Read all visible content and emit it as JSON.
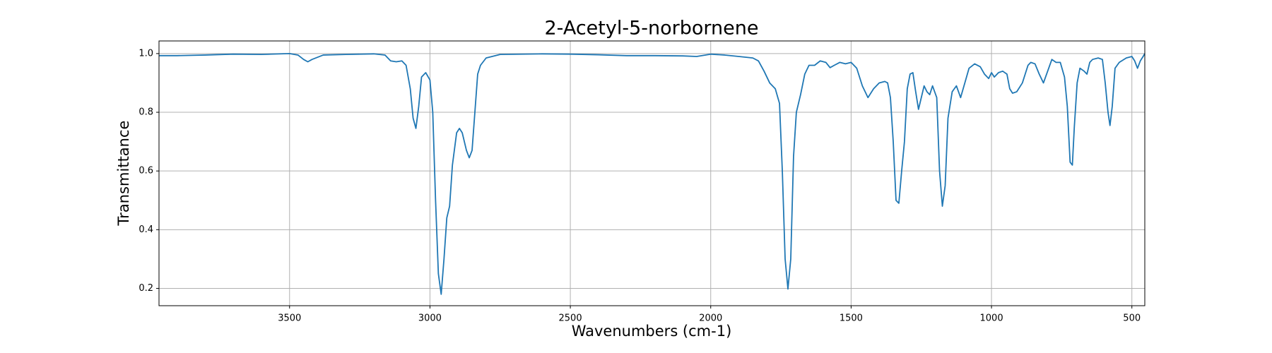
{
  "chart_data": {
    "type": "line",
    "title": "2-Acetyl-5-norbornene",
    "xlabel": "Wavenumbers (cm-1)",
    "ylabel": "Transmittance",
    "xlim": [
      3965,
      454
    ],
    "ylim": [
      0.141,
      1.043
    ],
    "xticks": [
      3500,
      3000,
      2500,
      2000,
      1500,
      1000,
      500
    ],
    "yticks": [
      0.2,
      0.4,
      0.6,
      0.8,
      {
        "value": 1.0,
        "label": "1.0"
      }
    ],
    "grid": true,
    "series": [
      {
        "color": "#1f77b4",
        "x": [
          3965,
          3900,
          3800,
          3700,
          3600,
          3500,
          3470,
          3450,
          3435,
          3420,
          3380,
          3300,
          3200,
          3160,
          3140,
          3120,
          3100,
          3085,
          3070,
          3060,
          3050,
          3040,
          3030,
          3015,
          3000,
          2990,
          2980,
          2970,
          2960,
          2950,
          2940,
          2930,
          2920,
          2905,
          2895,
          2885,
          2870,
          2860,
          2850,
          2840,
          2830,
          2820,
          2800,
          2750,
          2600,
          2500,
          2400,
          2300,
          2200,
          2100,
          2050,
          2000,
          1950,
          1900,
          1850,
          1830,
          1810,
          1790,
          1770,
          1755,
          1745,
          1735,
          1725,
          1715,
          1705,
          1695,
          1680,
          1665,
          1650,
          1630,
          1610,
          1590,
          1575,
          1560,
          1540,
          1520,
          1500,
          1480,
          1460,
          1440,
          1420,
          1400,
          1380,
          1370,
          1360,
          1350,
          1340,
          1330,
          1320,
          1310,
          1300,
          1290,
          1280,
          1270,
          1260,
          1250,
          1240,
          1230,
          1220,
          1210,
          1195,
          1185,
          1175,
          1165,
          1155,
          1140,
          1125,
          1110,
          1095,
          1080,
          1060,
          1040,
          1025,
          1010,
          1000,
          990,
          975,
          960,
          945,
          935,
          925,
          910,
          890,
          870,
          860,
          845,
          830,
          815,
          800,
          785,
          770,
          755,
          740,
          730,
          720,
          712,
          705,
          695,
          685,
          670,
          660,
          650,
          640,
          620,
          605,
          595,
          585,
          578,
          570,
          560,
          545,
          520,
          500,
          490,
          480,
          470,
          460,
          454
        ],
        "values": [
          0.993,
          0.993,
          0.995,
          0.998,
          0.997,
          1.0,
          0.995,
          0.98,
          0.972,
          0.98,
          0.995,
          0.997,
          0.999,
          0.995,
          0.975,
          0.972,
          0.975,
          0.96,
          0.88,
          0.78,
          0.745,
          0.82,
          0.92,
          0.935,
          0.91,
          0.8,
          0.5,
          0.25,
          0.18,
          0.3,
          0.44,
          0.48,
          0.62,
          0.73,
          0.745,
          0.73,
          0.67,
          0.645,
          0.67,
          0.8,
          0.93,
          0.96,
          0.985,
          0.997,
          0.999,
          0.998,
          0.996,
          0.993,
          0.993,
          0.992,
          0.99,
          0.998,
          0.995,
          0.99,
          0.985,
          0.975,
          0.94,
          0.9,
          0.88,
          0.83,
          0.6,
          0.3,
          0.198,
          0.3,
          0.65,
          0.8,
          0.86,
          0.93,
          0.96,
          0.96,
          0.975,
          0.97,
          0.952,
          0.96,
          0.97,
          0.965,
          0.97,
          0.95,
          0.89,
          0.85,
          0.88,
          0.9,
          0.905,
          0.9,
          0.85,
          0.7,
          0.5,
          0.49,
          0.6,
          0.7,
          0.88,
          0.93,
          0.935,
          0.87,
          0.81,
          0.85,
          0.89,
          0.87,
          0.86,
          0.89,
          0.85,
          0.6,
          0.48,
          0.55,
          0.78,
          0.87,
          0.89,
          0.85,
          0.9,
          0.95,
          0.965,
          0.955,
          0.93,
          0.915,
          0.935,
          0.92,
          0.935,
          0.94,
          0.93,
          0.88,
          0.865,
          0.87,
          0.9,
          0.96,
          0.97,
          0.965,
          0.93,
          0.9,
          0.94,
          0.98,
          0.97,
          0.97,
          0.92,
          0.82,
          0.63,
          0.62,
          0.75,
          0.9,
          0.95,
          0.94,
          0.93,
          0.97,
          0.98,
          0.985,
          0.98,
          0.9,
          0.8,
          0.755,
          0.82,
          0.95,
          0.97,
          0.985,
          0.99,
          0.975,
          0.95,
          0.975,
          0.99,
          1.0
        ]
      }
    ]
  }
}
